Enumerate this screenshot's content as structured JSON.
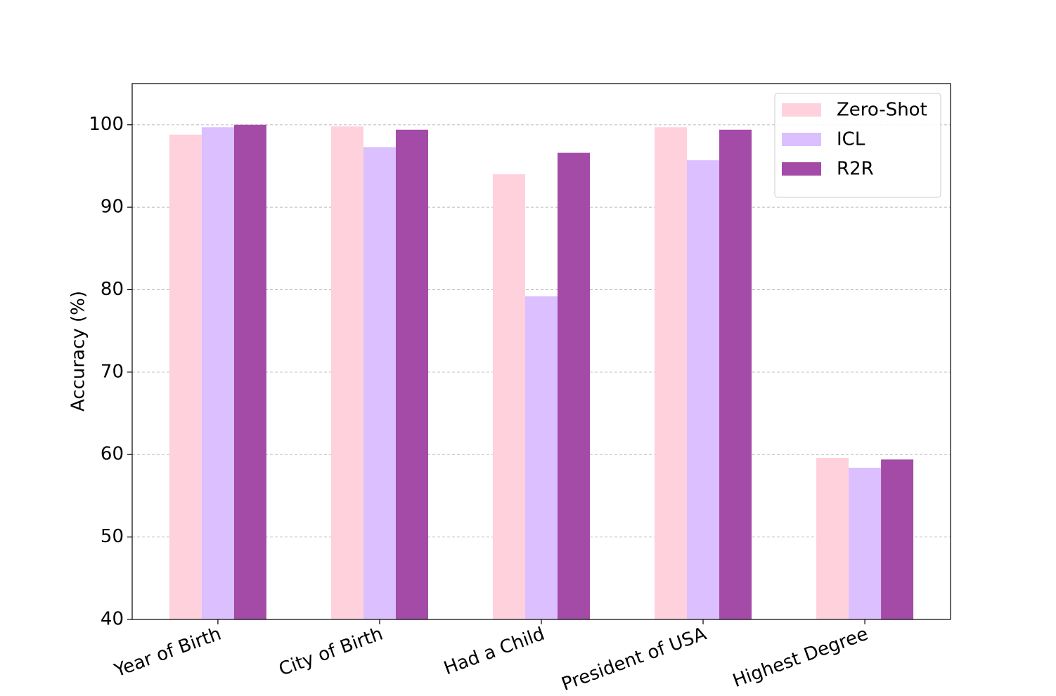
{
  "chart_data": {
    "type": "bar",
    "y_label": "Accuracy (%)",
    "categories": [
      "Year of Birth",
      "City of Birth",
      "Had a Child",
      "President of USA",
      "Highest Degree"
    ],
    "series": [
      {
        "name": "Zero-Shot",
        "color": "#ffd1dc",
        "values": [
          98.8,
          99.8,
          94.0,
          99.7,
          59.6
        ]
      },
      {
        "name": "ICL",
        "color": "#dbbfff",
        "values": [
          99.7,
          97.3,
          79.2,
          95.7,
          58.4
        ]
      },
      {
        "name": "R2R",
        "color": "#a34ba6",
        "values": [
          100.0,
          99.4,
          96.6,
          99.4,
          59.4
        ]
      }
    ],
    "ylim": [
      40,
      105
    ],
    "yticks": [
      40,
      50,
      60,
      70,
      80,
      90,
      100
    ],
    "grid": true,
    "legend": "upper right"
  }
}
